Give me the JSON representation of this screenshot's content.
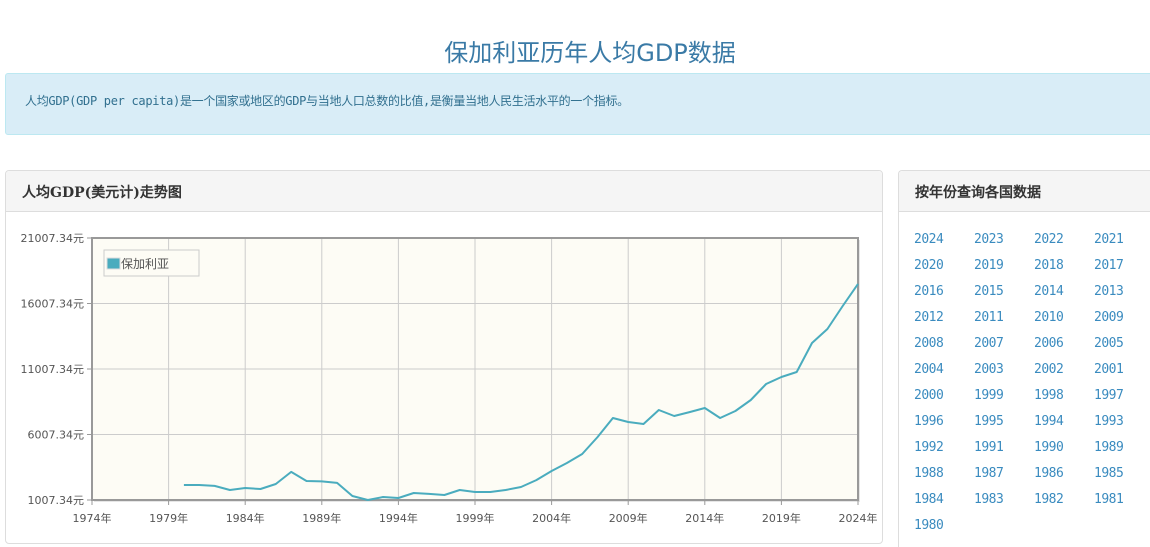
{
  "page": {
    "title": "保加利亚历年人均GDP数据",
    "intro": "人均GDP(GDP per capita)是一个国家或地区的GDP与当地人口总数的比值,是衡量当地人民生活水平的一个指标。"
  },
  "chart_panel": {
    "heading": "人均GDP(美元计)走势图"
  },
  "year_panel": {
    "heading": "按年份查询各国数据",
    "years": [
      "2024",
      "2023",
      "2022",
      "2021",
      "2020",
      "2019",
      "2018",
      "2017",
      "2016",
      "2015",
      "2014",
      "2013",
      "2012",
      "2011",
      "2010",
      "2009",
      "2008",
      "2007",
      "2006",
      "2005",
      "2004",
      "2003",
      "2002",
      "2001",
      "2000",
      "1999",
      "1998",
      "1997",
      "1996",
      "1995",
      "1994",
      "1993",
      "1992",
      "1991",
      "1990",
      "1989",
      "1988",
      "1987",
      "1986",
      "1985",
      "1984",
      "1983",
      "1982",
      "1981",
      "1980"
    ]
  },
  "colors": {
    "line": "#4aacbe",
    "plot_bg": "#fdfcf5",
    "title": "#3a7aa6",
    "link": "#3a8bbf"
  },
  "chart_data": {
    "type": "line",
    "title": "人均GDP(美元计)走势图",
    "xlabel": "",
    "ylabel": "",
    "legend": [
      "保加利亚"
    ],
    "legend_position": "top-left inside",
    "grid": true,
    "x_tick_labels": [
      "1974年",
      "1979年",
      "1984年",
      "1989年",
      "1994年",
      "1999年",
      "2004年",
      "2009年",
      "2014年",
      "2019年",
      "2024年"
    ],
    "y_tick_labels": [
      "1007.34元",
      "6007.34元",
      "11007.34元",
      "16007.34元",
      "21007.34元"
    ],
    "xlim": [
      1974,
      2024
    ],
    "ylim": [
      1007.34,
      21007.34
    ],
    "x": [
      1980,
      1981,
      1982,
      1983,
      1984,
      1985,
      1986,
      1987,
      1988,
      1989,
      1990,
      1991,
      1992,
      1993,
      1994,
      1995,
      1996,
      1997,
      1998,
      1999,
      2000,
      2001,
      2002,
      2003,
      2004,
      2005,
      2006,
      2007,
      2008,
      2009,
      2010,
      2011,
      2012,
      2013,
      2014,
      2015,
      2016,
      2017,
      2018,
      2019,
      2020,
      2021,
      2022,
      2023,
      2024
    ],
    "series": [
      {
        "name": "保加利亚",
        "values": [
          2150,
          2150,
          2080,
          1770,
          1920,
          1850,
          2230,
          3150,
          2460,
          2430,
          2310,
          1310,
          1010,
          1240,
          1160,
          1540,
          1470,
          1390,
          1770,
          1620,
          1620,
          1770,
          2000,
          2530,
          3220,
          3830,
          4520,
          5820,
          7270,
          6960,
          6810,
          7880,
          7420,
          7720,
          8030,
          7270,
          7800,
          8640,
          9860,
          10400,
          10780,
          12990,
          14060,
          15820,
          17500
        ]
      }
    ]
  }
}
